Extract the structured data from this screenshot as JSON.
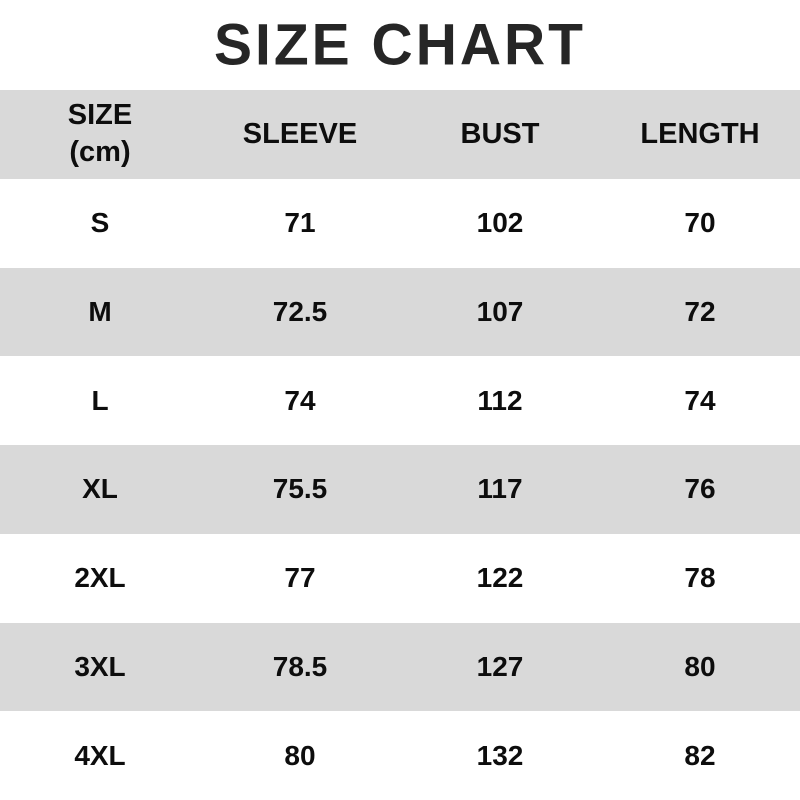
{
  "title": "SIZE CHART",
  "header": {
    "size_line1": "SIZE",
    "size_line2": "(cm)",
    "sleeve": "SLEEVE",
    "bust": "BUST",
    "length": "LENGTH"
  },
  "rows": [
    {
      "size": "S",
      "sleeve": "71",
      "bust": "102",
      "length": "70"
    },
    {
      "size": "M",
      "sleeve": "72.5",
      "bust": "107",
      "length": "72"
    },
    {
      "size": "L",
      "sleeve": "74",
      "bust": "112",
      "length": "74"
    },
    {
      "size": "XL",
      "sleeve": "75.5",
      "bust": "117",
      "length": "76"
    },
    {
      "size": "2XL",
      "sleeve": "77",
      "bust": "122",
      "length": "78"
    },
    {
      "size": "3XL",
      "sleeve": "78.5",
      "bust": "127",
      "length": "80"
    },
    {
      "size": "4XL",
      "sleeve": "80",
      "bust": "132",
      "length": "82"
    }
  ],
  "colors": {
    "stripe": "#d9d9d9",
    "text": "#0d0d0d",
    "title_text": "#262626",
    "background": "#ffffff"
  },
  "chart_data": {
    "type": "table",
    "title": "SIZE CHART",
    "unit": "cm",
    "columns": [
      "SIZE (cm)",
      "SLEEVE",
      "BUST",
      "LENGTH"
    ],
    "rows": [
      [
        "S",
        71,
        102,
        70
      ],
      [
        "M",
        72.5,
        107,
        72
      ],
      [
        "L",
        74,
        112,
        74
      ],
      [
        "XL",
        75.5,
        117,
        76
      ],
      [
        "2XL",
        77,
        122,
        78
      ],
      [
        "3XL",
        78.5,
        127,
        80
      ],
      [
        "4XL",
        80,
        132,
        82
      ]
    ],
    "layout": {
      "row_striping": "alternating gray/white starting with header gray",
      "text_align": "center"
    }
  }
}
